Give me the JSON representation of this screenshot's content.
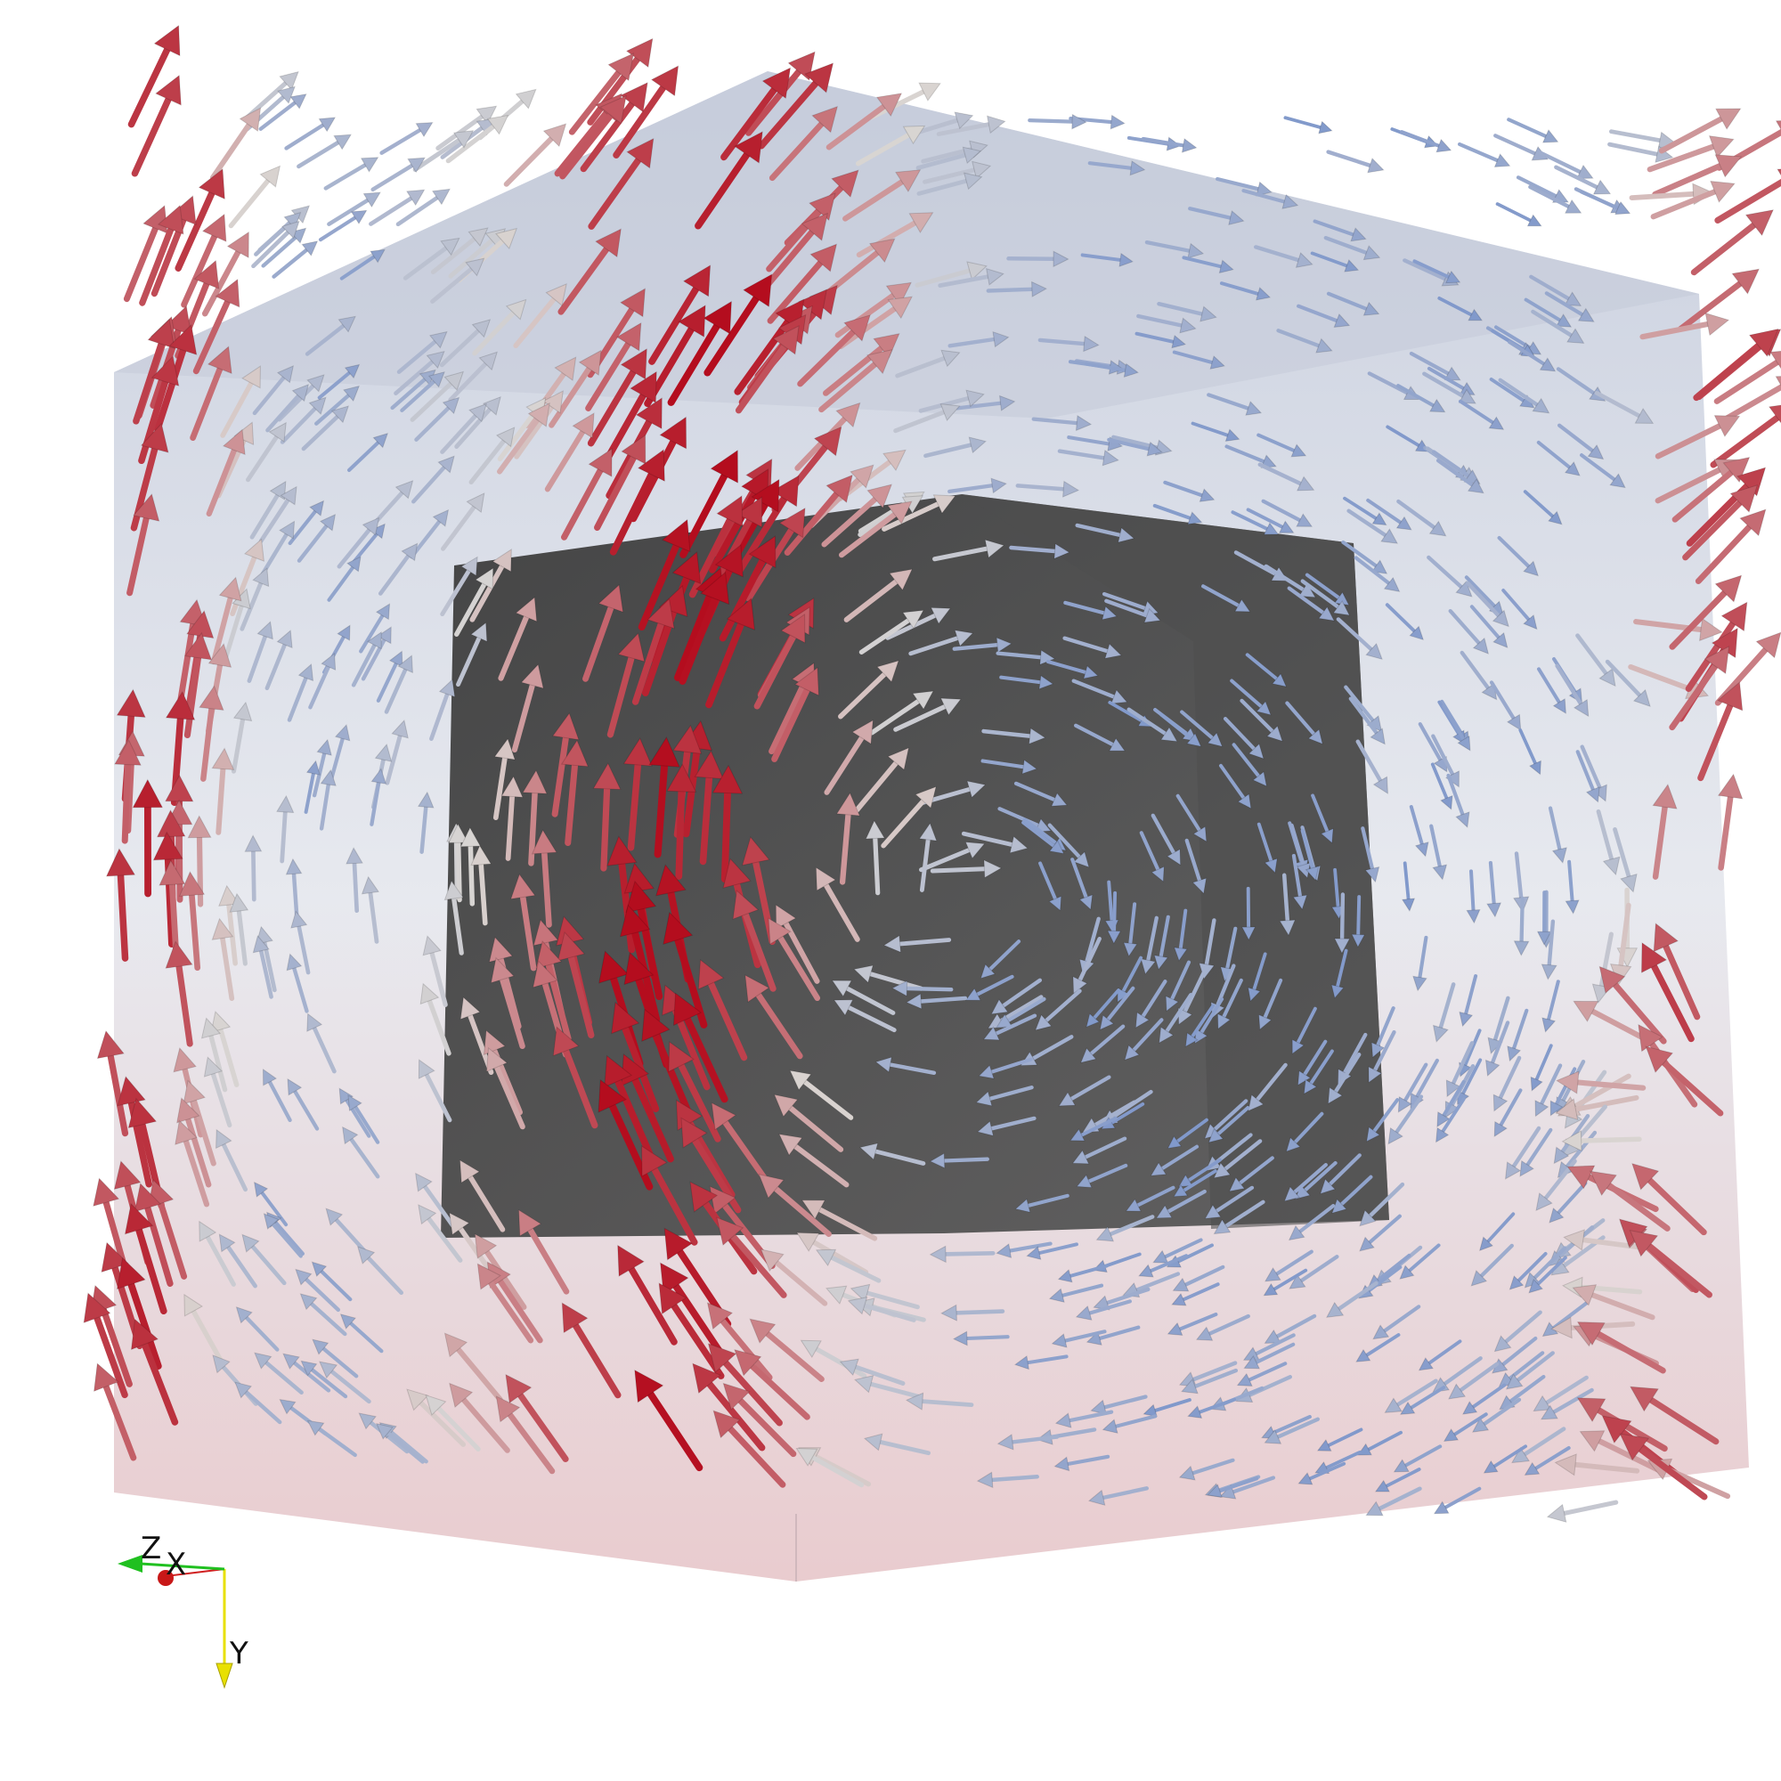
{
  "scene": {
    "background": "#ffffff",
    "box_top_color": "#c6cddd",
    "box_mid_color": "#e6e8ee",
    "box_bottom_color": "#e8c9cc",
    "obstacle_color": "#4a4a4a",
    "colormap": {
      "low": "#5b7fc8",
      "mid": "#d9d5d2",
      "high": "#b40d1e"
    },
    "field": {
      "type": "vector-glyph-arrows",
      "pattern": "vortex",
      "visible_magnitude_range": [
        0.0,
        1.0
      ]
    }
  },
  "orientation_axes": {
    "x_label": "X",
    "y_label": "Y",
    "z_label": "Z",
    "x_color": "#d02020",
    "y_color": "#e8e000",
    "z_color": "#20c020"
  }
}
